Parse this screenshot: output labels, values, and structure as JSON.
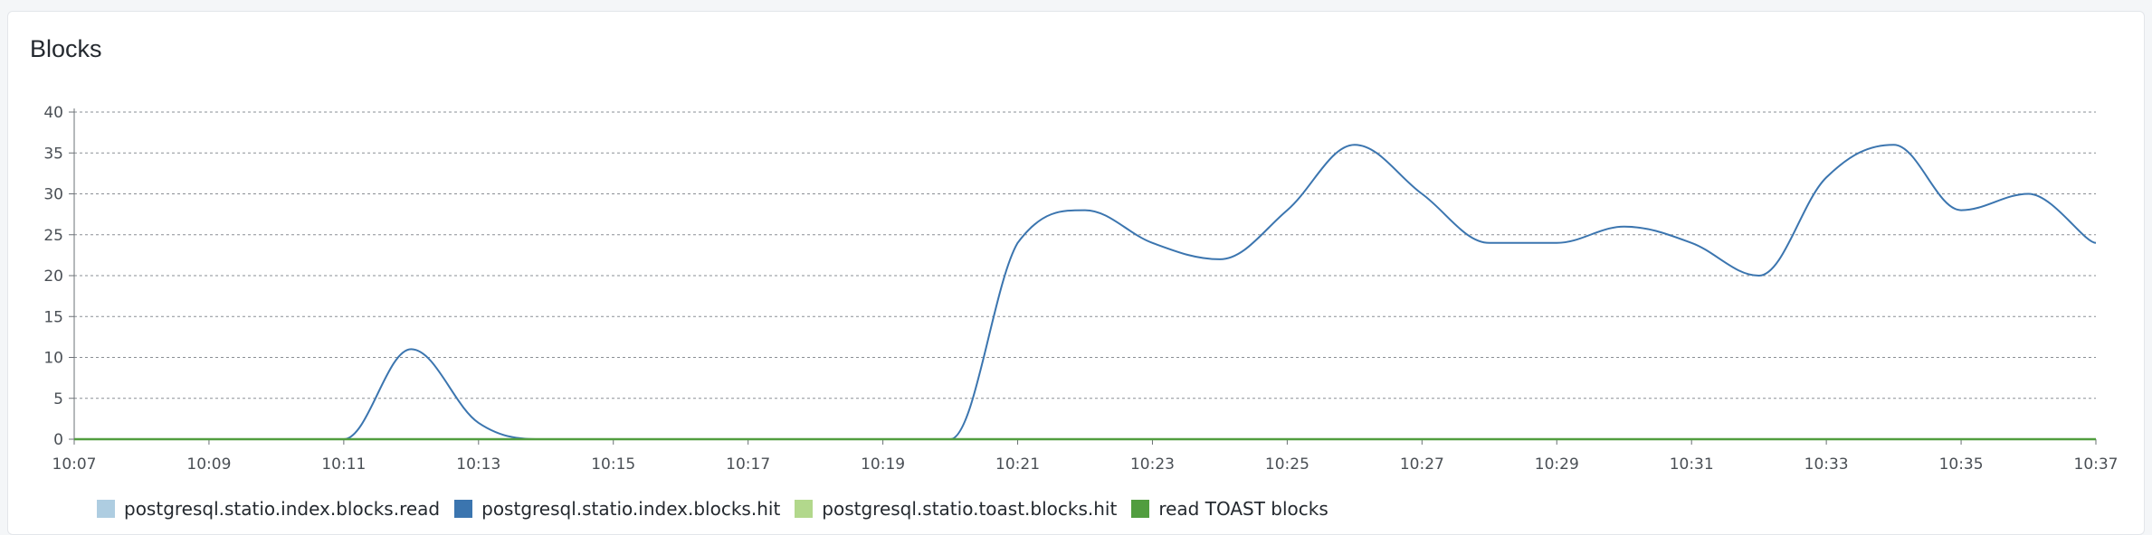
{
  "panel": {
    "title": "Blocks"
  },
  "chart_data": {
    "type": "line",
    "title": "Blocks",
    "xlabel": "",
    "ylabel": "",
    "x_tick_labels": [
      "10:07",
      "10:09",
      "10:11",
      "10:13",
      "10:15",
      "10:17",
      "10:19",
      "10:21",
      "10:23",
      "10:25",
      "10:27",
      "10:29",
      "10:31",
      "10:33",
      "10:35",
      "10:37"
    ],
    "y_ticks": [
      0,
      5,
      10,
      15,
      20,
      25,
      30,
      35,
      40
    ],
    "xlim_minutes_after_10": [
      7,
      37
    ],
    "ylim": [
      0,
      40
    ],
    "grid": "horizontal-dotted",
    "legend_position": "bottom-left",
    "x_minutes": [
      7,
      8,
      9,
      10,
      11,
      12,
      13,
      14,
      15,
      16,
      17,
      18,
      19,
      20,
      21,
      22,
      23,
      24,
      25,
      26,
      27,
      28,
      29,
      30,
      31,
      32,
      33,
      34,
      35,
      36,
      37
    ],
    "series": [
      {
        "name": "postgresql.statio.index.blocks.read",
        "color": "#aecde1",
        "values": [
          0,
          0,
          0,
          0,
          0,
          0,
          0,
          0,
          0,
          0,
          0,
          0,
          0,
          0,
          0,
          0,
          0,
          0,
          0,
          0,
          0,
          0,
          0,
          0,
          0,
          0,
          0,
          0,
          0,
          0,
          0
        ]
      },
      {
        "name": "postgresql.statio.index.blocks.hit",
        "color": "#3b75af",
        "values": [
          0,
          0,
          0,
          0,
          0,
          11,
          2,
          0,
          0,
          0,
          0,
          0,
          0,
          0,
          24,
          28,
          24,
          22,
          28,
          36,
          30,
          24,
          24,
          26,
          24,
          20,
          32,
          36,
          28,
          30,
          24
        ]
      },
      {
        "name": "postgresql.statio.toast.blocks.hit",
        "color": "#b2d88c",
        "values": [
          0,
          0,
          0,
          0,
          0,
          0,
          0,
          0,
          0,
          0,
          0,
          0,
          0,
          0,
          0,
          0,
          0,
          0,
          0,
          0,
          0,
          0,
          0,
          0,
          0,
          0,
          0,
          0,
          0,
          0,
          0
        ]
      },
      {
        "name": "read TOAST blocks",
        "color": "#519d3f",
        "values": [
          0,
          0,
          0,
          0,
          0,
          0,
          0,
          0,
          0,
          0,
          0,
          0,
          0,
          0,
          0,
          0,
          0,
          0,
          0,
          0,
          0,
          0,
          0,
          0,
          0,
          0,
          0,
          0,
          0,
          0,
          0
        ]
      }
    ]
  }
}
